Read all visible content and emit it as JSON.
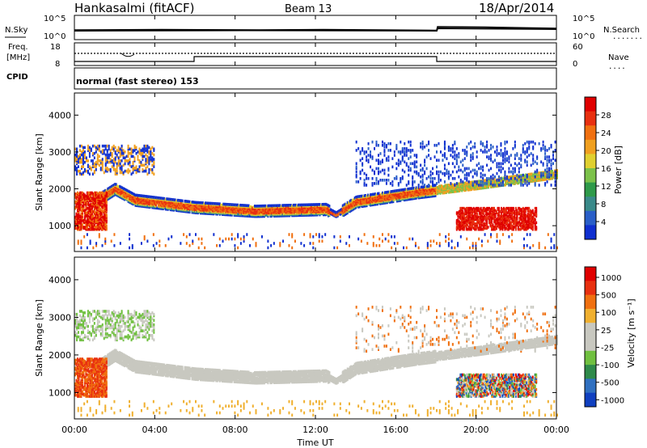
{
  "header": {
    "station": "Hankasalmi (fitACF)",
    "beam": "Beam 13",
    "date": "18/Apr/2014"
  },
  "noise_panel": {
    "left_label": "N.Sky",
    "right_label": "N.Search",
    "left_ticks": [
      "10^5",
      "10^0"
    ],
    "right_ticks": [
      "10^5",
      "10^0"
    ],
    "legend": "......."
  },
  "freq_panel": {
    "left_label_1": "Freq.",
    "left_label_2": "[MHz]",
    "left_ticks": [
      "18",
      "8"
    ],
    "right_label": "Nave",
    "right_ticks": [
      "60",
      "0"
    ],
    "legend": "...."
  },
  "cpid": {
    "label": "CPID",
    "text": "normal (fast stereo) 153"
  },
  "colors": {
    "power": [
      "#1030d0",
      "#2a5fc8",
      "#3a8a8a",
      "#2f9a4a",
      "#7cc24a",
      "#e0d030",
      "#f0a020",
      "#f07010",
      "#e83010",
      "#e00000"
    ],
    "velocity": [
      "#1040c0",
      "#3070c0",
      "#2f8a4a",
      "#70c040",
      "#c8c8c0",
      "#c8c8c0",
      "#f0b030",
      "#f07010",
      "#e83010",
      "#e00000"
    ],
    "ground_scatter": "#c8c8c0"
  },
  "chart_data": [
    {
      "type": "heatmap",
      "ylabel": "Slant Range [km]",
      "xlabel": "Time UT",
      "x_ticks": [
        "00:00",
        "04:00",
        "08:00",
        "12:00",
        "16:00",
        "20:00",
        "00:00"
      ],
      "y_ticks": [
        "1000",
        "2000",
        "3000",
        "4000"
      ],
      "ylim": [
        300,
        4600
      ],
      "colorbar": {
        "label": "Power [dB]",
        "ticks": [
          "4",
          "8",
          "12",
          "16",
          "20",
          "24",
          "28"
        ]
      },
      "main_band_range_km": [
        [
          0,
          1300
        ],
        [
          2,
          2000
        ],
        [
          3,
          1700
        ],
        [
          6,
          1500
        ],
        [
          9,
          1400
        ],
        [
          12.5,
          1450
        ],
        [
          13,
          1300
        ],
        [
          14,
          1650
        ],
        [
          17,
          1900
        ],
        [
          20,
          2100
        ],
        [
          24,
          2400
        ]
      ]
    },
    {
      "type": "heatmap",
      "ylabel": "Slant Range [km]",
      "xlabel": "Time UT",
      "x_ticks": [
        "00:00",
        "04:00",
        "08:00",
        "12:00",
        "16:00",
        "20:00",
        "00:00"
      ],
      "y_ticks": [
        "1000",
        "2000",
        "3000",
        "4000"
      ],
      "ylim": [
        300,
        4600
      ],
      "colorbar": {
        "label": "Velocity [m s⁻¹]",
        "ticks": [
          "1000",
          "500",
          "100",
          "25",
          "-25",
          "-100",
          "-500",
          "-1000"
        ]
      }
    }
  ]
}
